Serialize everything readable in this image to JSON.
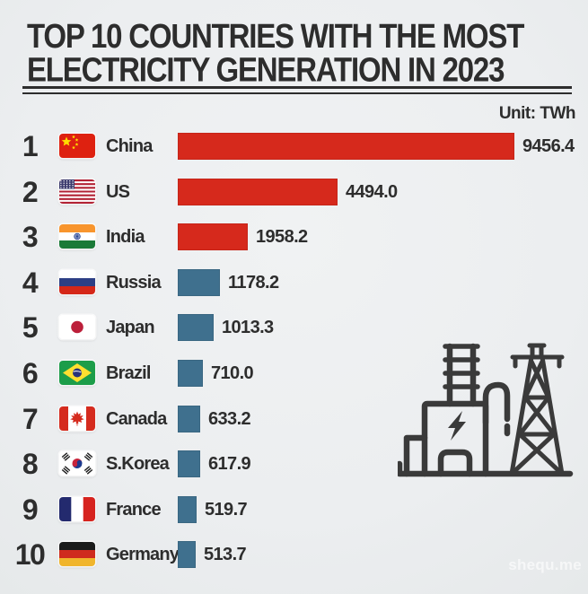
{
  "title": {
    "line1": "TOP 10 COUNTRIES WITH THE MOST",
    "line2": "ELECTRICITY GENERATION IN 2023"
  },
  "unit_label": "Unit: TWh",
  "watermark": "shequ.me",
  "colors": {
    "background": "#edeff0",
    "text": "#2d2d2d",
    "bar_red": "#d6291c",
    "bar_blue": "#3f708e",
    "icon": "#3a3a3a"
  },
  "icons": {
    "decoration": "power-plant-and-pylon-icon",
    "flag_style": "rounded-rectangle"
  },
  "chart_data": {
    "type": "bar",
    "orientation": "horizontal",
    "title": "TOP 10 COUNTRIES WITH THE MOST ELECTRICITY GENERATION IN 2023",
    "unit": "TWh",
    "xlim": [
      0,
      9456.4
    ],
    "grid": false,
    "legend": "none",
    "ranks": [
      1,
      2,
      3,
      4,
      5,
      6,
      7,
      8,
      9,
      10
    ],
    "categories": [
      "China",
      "US",
      "India",
      "Russia",
      "Japan",
      "Brazil",
      "Canada",
      "S.Korea",
      "France",
      "Germany"
    ],
    "values": [
      9456.4,
      4494.0,
      1958.2,
      1178.2,
      1013.3,
      710.0,
      633.2,
      617.9,
      519.7,
      513.7
    ],
    "flags": [
      "china",
      "us",
      "india",
      "russia",
      "japan",
      "brazil",
      "canada",
      "s-korea",
      "france",
      "germany"
    ],
    "bar_colors": [
      "#d6291c",
      "#d6291c",
      "#d6291c",
      "#3f708e",
      "#3f708e",
      "#3f708e",
      "#3f708e",
      "#3f708e",
      "#3f708e",
      "#3f708e"
    ]
  }
}
